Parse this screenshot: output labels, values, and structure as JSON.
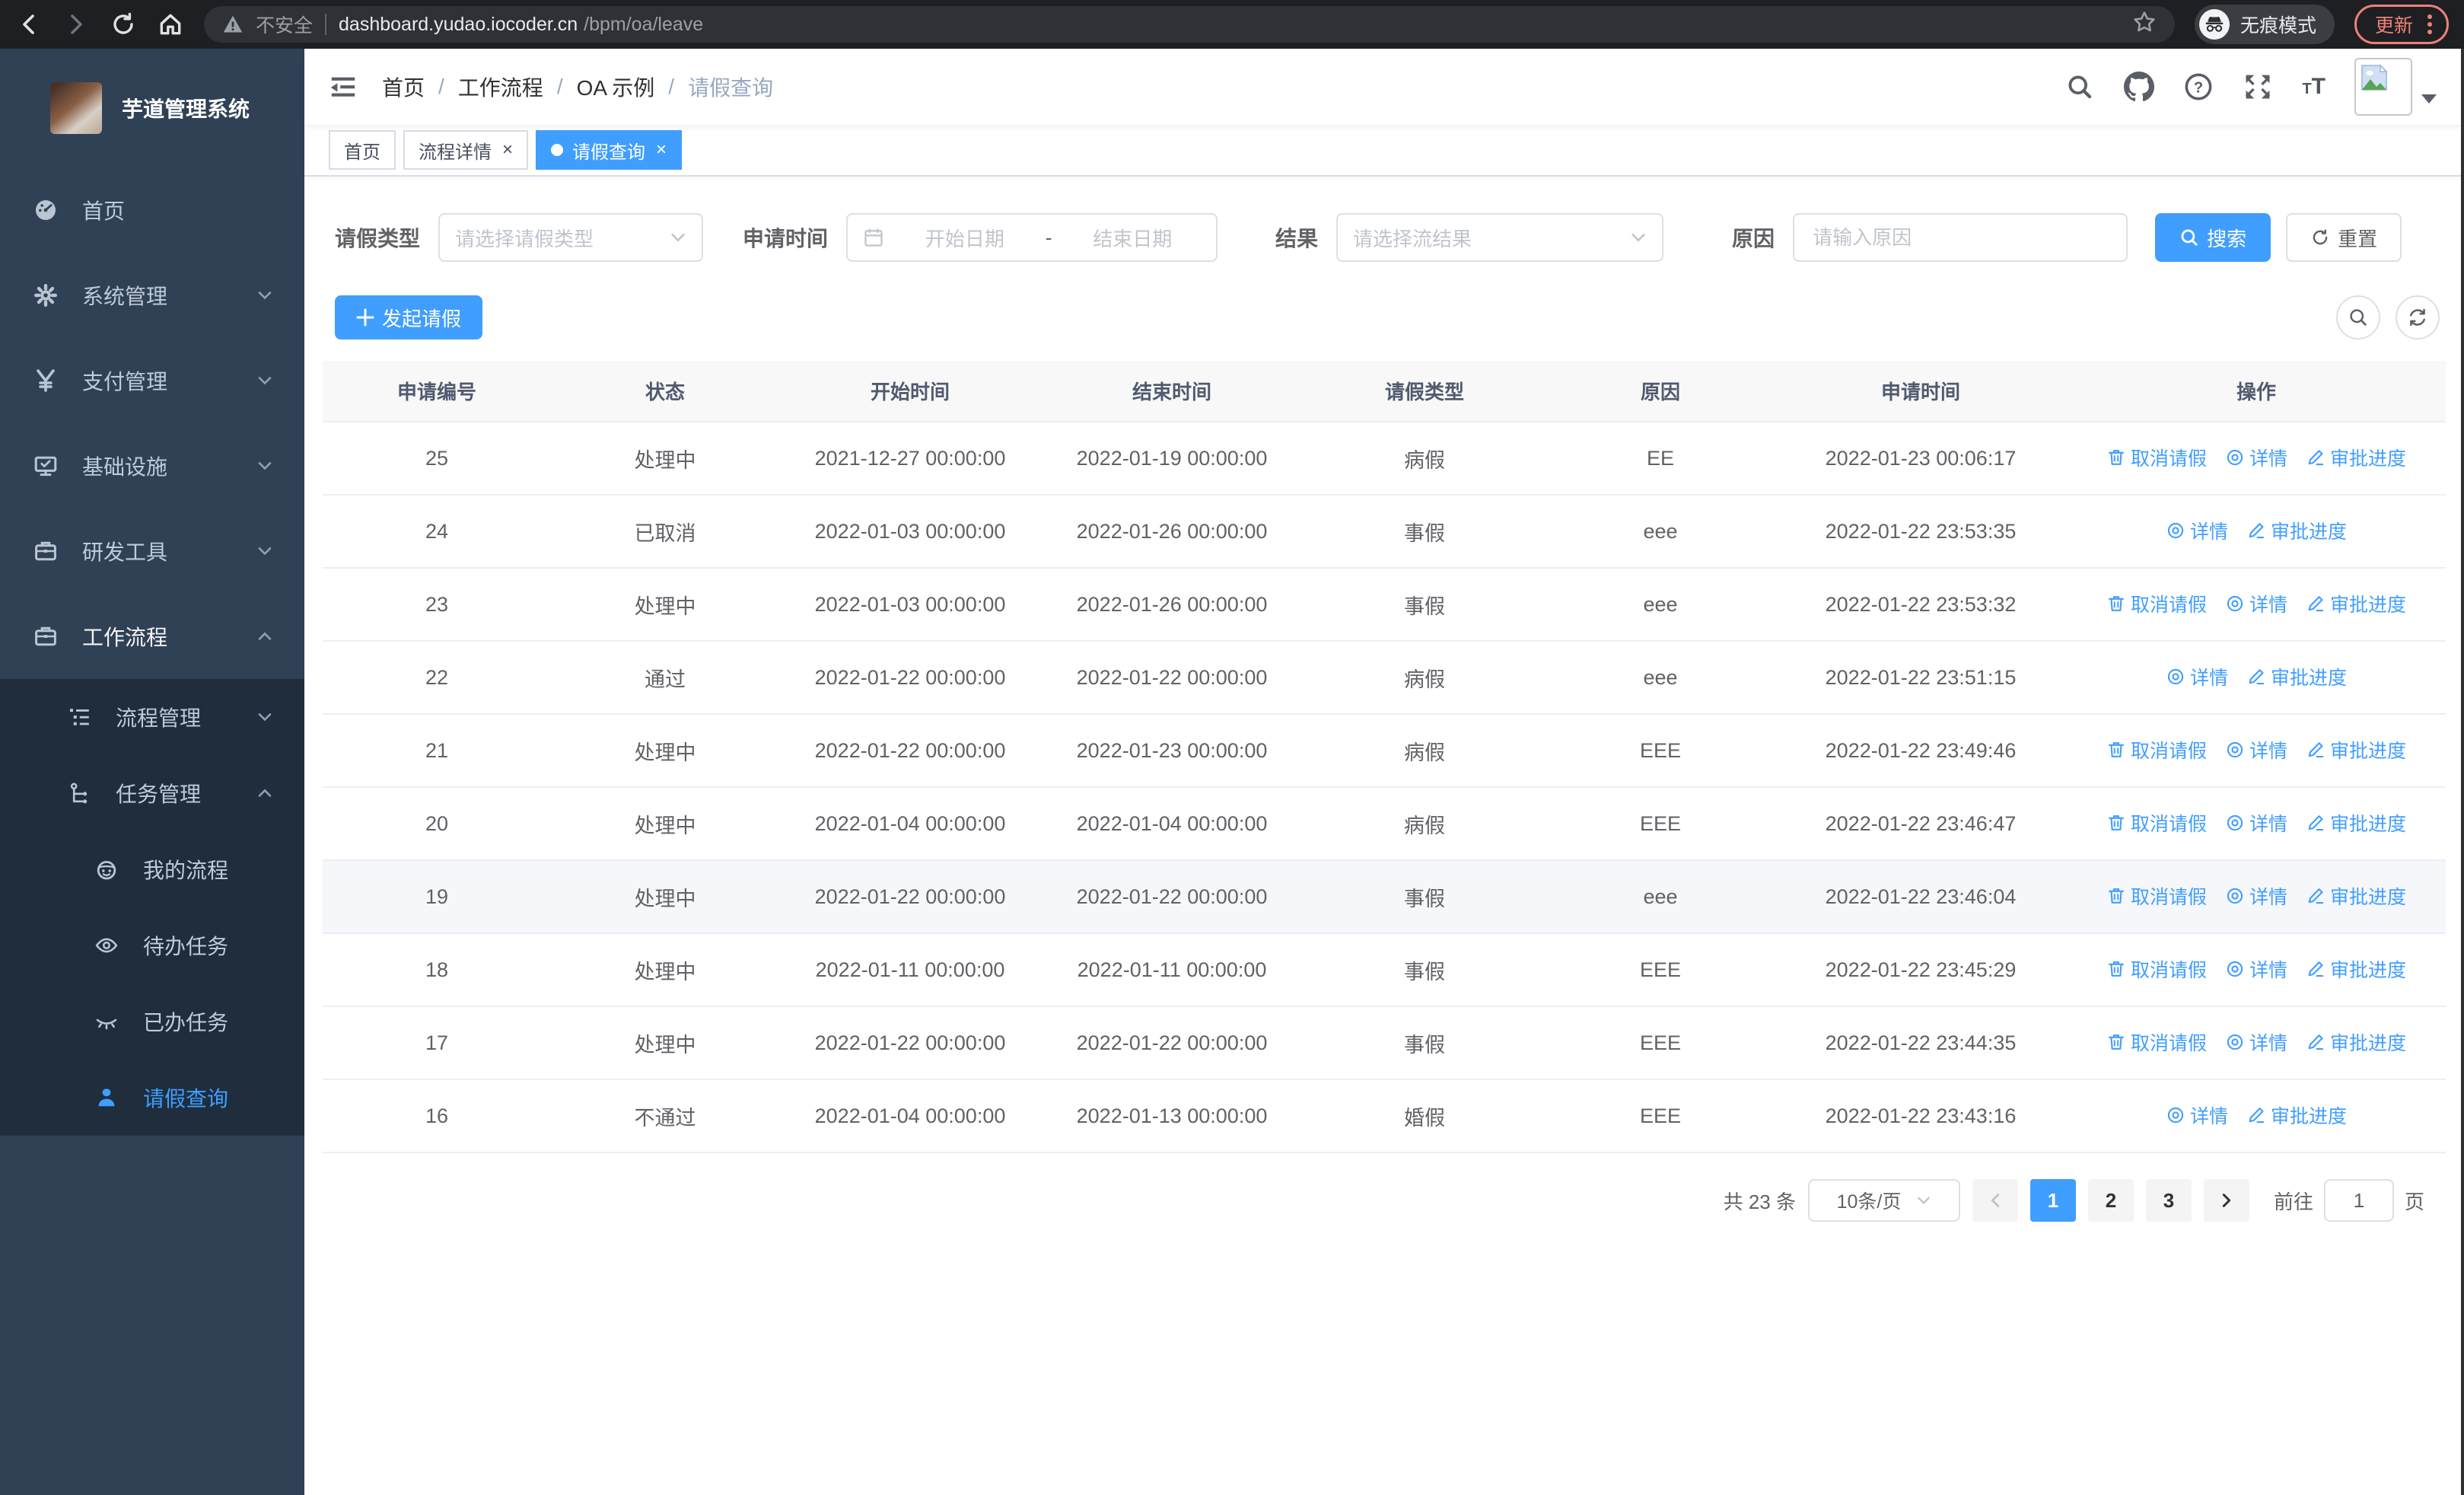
{
  "colors": {
    "primary": "#409eff",
    "sidebar_bg": "#304156",
    "submenu_bg": "#1f2d3d",
    "tag_active": "#409eff",
    "update_red": "#ee8178",
    "hover_row": "#f5f7fa"
  },
  "browser": {
    "security_label": "不安全",
    "url_host": "dashboard.yudao.iocoder.cn",
    "url_path": "/bpm/oa/leave",
    "incognito_label": "无痕模式",
    "update_label": "更新"
  },
  "sidebar": {
    "title": "芋道管理系统",
    "menu": [
      {
        "label": "首页",
        "icon": "dashboard-icon"
      },
      {
        "label": "系统管理",
        "icon": "gear-icon",
        "arrow": "down"
      },
      {
        "label": "支付管理",
        "icon": "yen-icon",
        "arrow": "down"
      },
      {
        "label": "基础设施",
        "icon": "monitor-icon",
        "arrow": "down"
      },
      {
        "label": "研发工具",
        "icon": "briefcase-icon",
        "arrow": "down"
      },
      {
        "label": "工作流程",
        "icon": "briefcase-icon",
        "arrow": "up",
        "parent_active": true
      }
    ],
    "submenu": [
      {
        "label": "流程管理",
        "icon": "list-tree-icon",
        "arrow": "down",
        "level": 2
      },
      {
        "label": "任务管理",
        "icon": "flow-icon",
        "arrow": "up",
        "level": 2
      },
      {
        "label": "我的流程",
        "icon": "robot-icon",
        "level": 3
      },
      {
        "label": "待办任务",
        "icon": "eye-open-icon",
        "level": 3
      },
      {
        "label": "已办任务",
        "icon": "eye-close-icon",
        "level": 3
      },
      {
        "label": "请假查询",
        "icon": "user-icon",
        "level": 3,
        "active": true
      }
    ]
  },
  "navbar": {
    "breadcrumb": [
      "首页",
      "工作流程",
      "OA 示例",
      "请假查询"
    ]
  },
  "tags": [
    {
      "label": "首页"
    },
    {
      "label": "流程详情",
      "closable": true
    },
    {
      "label": "请假查询",
      "closable": true,
      "active": true
    }
  ],
  "filters": {
    "leave_type_label": "请假类型",
    "leave_type_placeholder": "请选择请假类型",
    "apply_time_label": "申请时间",
    "date_start_placeholder": "开始日期",
    "date_separator": "-",
    "date_end_placeholder": "结束日期",
    "result_label": "结果",
    "result_placeholder": "请选择流结果",
    "reason_label": "原因",
    "reason_placeholder": "请输入原因",
    "search_label": "搜索",
    "reset_label": "重置"
  },
  "toolbar": {
    "create_label": "发起请假"
  },
  "table": {
    "columns": [
      "申请编号",
      "状态",
      "开始时间",
      "结束时间",
      "请假类型",
      "原因",
      "申请时间",
      "操作"
    ],
    "action_labels": {
      "cancel": "取消请假",
      "detail": "详情",
      "progress": "审批进度"
    },
    "rows": [
      {
        "id": "25",
        "status": "处理中",
        "start": "2021-12-27 00:00:00",
        "end": "2022-01-19 00:00:00",
        "type": "病假",
        "reason": "EE",
        "apply_time": "2022-01-23 00:06:17",
        "actions": [
          "cancel",
          "detail",
          "progress"
        ]
      },
      {
        "id": "24",
        "status": "已取消",
        "start": "2022-01-03 00:00:00",
        "end": "2022-01-26 00:00:00",
        "type": "事假",
        "reason": "eee",
        "apply_time": "2022-01-22 23:53:35",
        "actions": [
          "detail",
          "progress"
        ]
      },
      {
        "id": "23",
        "status": "处理中",
        "start": "2022-01-03 00:00:00",
        "end": "2022-01-26 00:00:00",
        "type": "事假",
        "reason": "eee",
        "apply_time": "2022-01-22 23:53:32",
        "actions": [
          "cancel",
          "detail",
          "progress"
        ]
      },
      {
        "id": "22",
        "status": "通过",
        "start": "2022-01-22 00:00:00",
        "end": "2022-01-22 00:00:00",
        "type": "病假",
        "reason": "eee",
        "apply_time": "2022-01-22 23:51:15",
        "actions": [
          "detail",
          "progress"
        ]
      },
      {
        "id": "21",
        "status": "处理中",
        "start": "2022-01-22 00:00:00",
        "end": "2022-01-23 00:00:00",
        "type": "病假",
        "reason": "EEE",
        "apply_time": "2022-01-22 23:49:46",
        "actions": [
          "cancel",
          "detail",
          "progress"
        ]
      },
      {
        "id": "20",
        "status": "处理中",
        "start": "2022-01-04 00:00:00",
        "end": "2022-01-04 00:00:00",
        "type": "病假",
        "reason": "EEE",
        "apply_time": "2022-01-22 23:46:47",
        "actions": [
          "cancel",
          "detail",
          "progress"
        ]
      },
      {
        "id": "19",
        "status": "处理中",
        "start": "2022-01-22 00:00:00",
        "end": "2022-01-22 00:00:00",
        "type": "事假",
        "reason": "eee",
        "apply_time": "2022-01-22 23:46:04",
        "actions": [
          "cancel",
          "detail",
          "progress"
        ],
        "hovered": true
      },
      {
        "id": "18",
        "status": "处理中",
        "start": "2022-01-11 00:00:00",
        "end": "2022-01-11 00:00:00",
        "type": "事假",
        "reason": "EEE",
        "apply_time": "2022-01-22 23:45:29",
        "actions": [
          "cancel",
          "detail",
          "progress"
        ]
      },
      {
        "id": "17",
        "status": "处理中",
        "start": "2022-01-22 00:00:00",
        "end": "2022-01-22 00:00:00",
        "type": "事假",
        "reason": "EEE",
        "apply_time": "2022-01-22 23:44:35",
        "actions": [
          "cancel",
          "detail",
          "progress"
        ]
      },
      {
        "id": "16",
        "status": "不通过",
        "start": "2022-01-04 00:00:00",
        "end": "2022-01-13 00:00:00",
        "type": "婚假",
        "reason": "EEE",
        "apply_time": "2022-01-22 23:43:16",
        "actions": [
          "detail",
          "progress"
        ]
      }
    ]
  },
  "pagination": {
    "total_label": "共 23 条",
    "page_size": "10条/页",
    "pages": [
      "1",
      "2",
      "3"
    ],
    "active_page": "1",
    "goto_label": "前往",
    "goto_value": "1",
    "goto_suffix": "页"
  }
}
